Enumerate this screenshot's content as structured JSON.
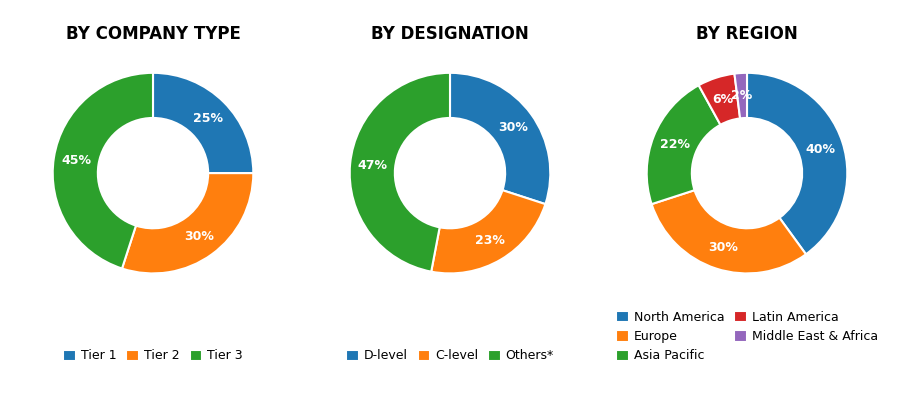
{
  "chart_data": [
    {
      "type": "donut",
      "title": "BY COMPANY TYPE",
      "categories": [
        "Tier 1",
        "Tier 2",
        "Tier 3"
      ],
      "values": [
        25,
        30,
        45
      ],
      "value_labels": [
        "25%",
        "30%",
        "45%"
      ],
      "data_labels": true,
      "legend": "lower center"
    },
    {
      "type": "donut",
      "title": "BY DESIGNATION",
      "categories": [
        "D-level",
        "C-level",
        "Others*"
      ],
      "values": [
        30,
        23,
        47
      ],
      "value_labels": [
        "30%",
        "23%",
        "47%"
      ],
      "data_labels": true,
      "legend": "lower center"
    },
    {
      "type": "donut",
      "title": "BY REGION",
      "categories": [
        "North America",
        "Europe",
        "Asia Pacific",
        "Latin America",
        "Middle East & Africa"
      ],
      "values": [
        40,
        30,
        22,
        6,
        2
      ],
      "value_labels": [
        "40%",
        "30%",
        "22%",
        "6%",
        "2%"
      ],
      "data_labels": true,
      "legend": "lower center"
    }
  ]
}
